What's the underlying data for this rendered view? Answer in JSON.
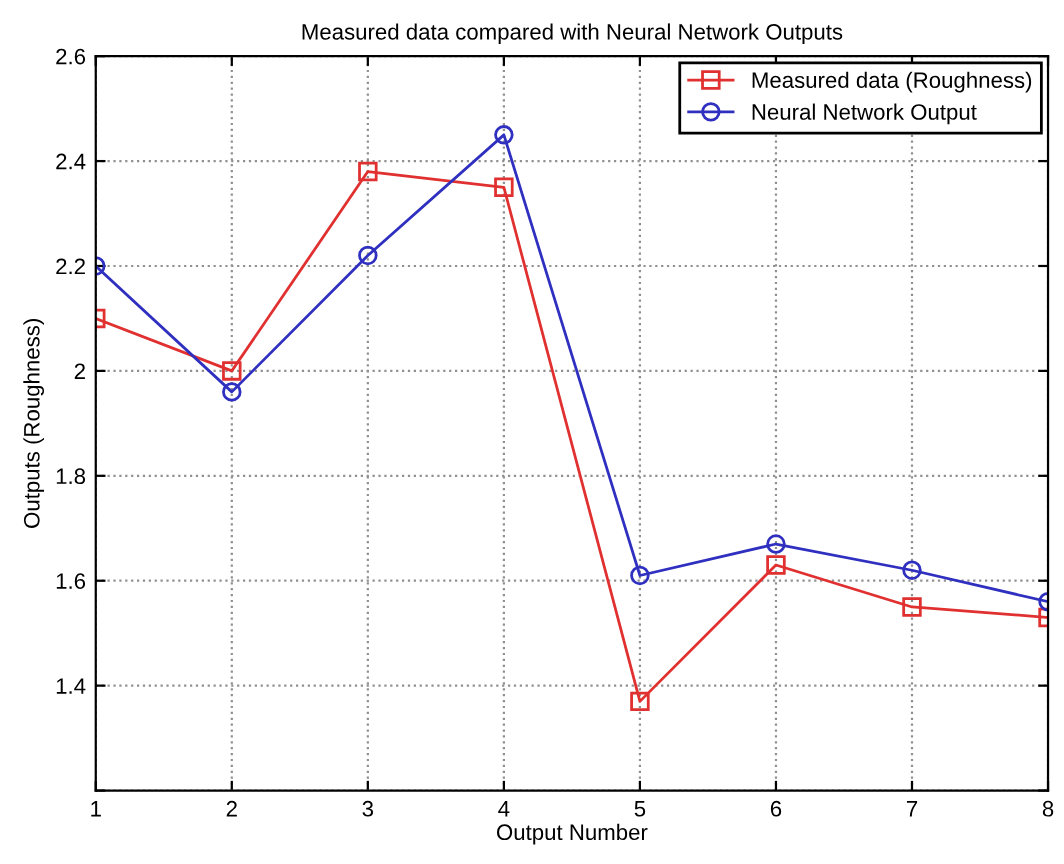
{
  "chart_data": {
    "type": "line",
    "title": "Measured data compared with Neural Network Outputs",
    "xlabel": "Output Number",
    "ylabel": "Outputs (Roughness)",
    "x": [
      1,
      2,
      3,
      4,
      5,
      6,
      7,
      8
    ],
    "series": [
      {
        "name": "Measured data (Roughness)",
        "color": "#e03030",
        "marker": "square",
        "values": [
          2.1,
          2.0,
          2.38,
          2.35,
          1.37,
          1.63,
          1.55,
          1.53
        ]
      },
      {
        "name": "Neural Network Output",
        "color": "#3030c0",
        "marker": "circle",
        "values": [
          2.2,
          1.96,
          2.22,
          2.45,
          1.61,
          1.67,
          1.62,
          1.56
        ]
      }
    ],
    "xlim": [
      1,
      8
    ],
    "xticks": [
      1,
      2,
      3,
      4,
      5,
      6,
      7,
      8
    ],
    "ylim": [
      1.2,
      2.6
    ],
    "yticks": [
      {
        "value": 1.2,
        "label": null
      },
      1.4,
      1.6,
      1.8,
      2,
      2.2,
      2.4,
      2.6
    ],
    "grid": true,
    "legend": "top right",
    "line_style": "solid"
  }
}
